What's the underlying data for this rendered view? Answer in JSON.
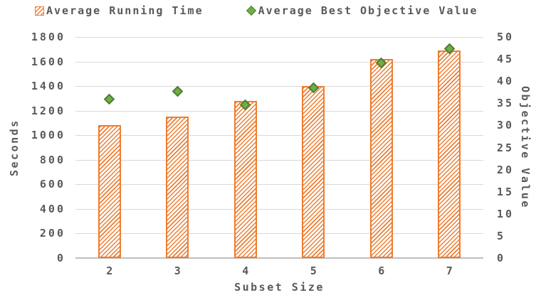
{
  "colors": {
    "bar_fill": "#ED7D31",
    "marker_fill": "#70AD47",
    "marker_border": "#507E32",
    "text": "#595959",
    "gridline": "#D9D9D9",
    "axis_line": "#BFBFBF",
    "background": "#FFFFFF"
  },
  "chart_data": {
    "type": "combo",
    "categories": [
      "2",
      "3",
      "4",
      "5",
      "6",
      "7"
    ],
    "series": [
      {
        "name": "Average Running Time",
        "type": "bar",
        "y_axis": "left",
        "values": [
          1085,
          1150,
          1280,
          1400,
          1620,
          1690
        ]
      },
      {
        "name": "Average Best Objective Value",
        "type": "scatter",
        "y_axis": "right",
        "values": [
          36,
          37.7,
          34.7,
          38.5,
          44.2,
          47.3
        ]
      }
    ],
    "title": "",
    "xlabel": "Subset Size",
    "ylabel_left": "Seconds",
    "ylabel_right": "Objective Value",
    "ylim_left": [
      0,
      1800
    ],
    "ytick_step_left": 200,
    "ylim_right": [
      0,
      50
    ],
    "ytick_step_right": 5,
    "grid": "horizontal",
    "legend_position": "top"
  }
}
